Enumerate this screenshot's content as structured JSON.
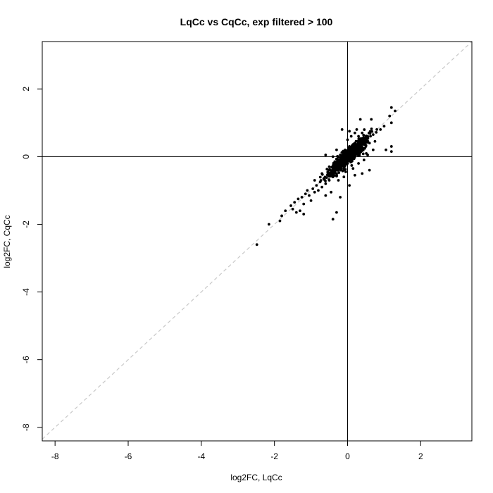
{
  "chart_data": {
    "type": "scatter",
    "title": "LqCc vs CqCc, exp filtered > 100",
    "xlabel": "log2FC, LqCc",
    "ylabel": "log2FC, CqCc",
    "xlim": [
      -8.35,
      3.4
    ],
    "ylim": [
      -8.4,
      3.4
    ],
    "xticks": [
      -8,
      -6,
      -4,
      -2,
      0,
      2
    ],
    "yticks": [
      -8,
      -6,
      -4,
      -2,
      0,
      2
    ],
    "xtick_labels": [
      "-8",
      "-6",
      "-4",
      "-2",
      "0",
      "2"
    ],
    "ytick_labels": [
      "-8",
      "-6",
      "-4",
      "-2",
      "0",
      "2"
    ],
    "reference_lines": {
      "vertical_x": 0,
      "horizontal_y": 0,
      "diagonal": "y = x, dashed grey"
    },
    "colors": {
      "points": "#000000",
      "diagonal": "#c8c8c8",
      "axes": "#000000"
    },
    "grid": false,
    "legend": "none",
    "points": [
      [
        -2.48,
        -2.6
      ],
      [
        -2.15,
        -2.0
      ],
      [
        -1.85,
        -1.9
      ],
      [
        -1.8,
        -1.75
      ],
      [
        -1.7,
        -1.6
      ],
      [
        -1.55,
        -1.45
      ],
      [
        -1.5,
        -1.55
      ],
      [
        -1.4,
        -1.65
      ],
      [
        -1.3,
        -1.6
      ],
      [
        -1.2,
        -1.7
      ],
      [
        -1.45,
        -1.35
      ],
      [
        -1.35,
        -1.25
      ],
      [
        -1.25,
        -1.2
      ],
      [
        -1.15,
        -1.1
      ],
      [
        -1.2,
        -1.4
      ],
      [
        -1.05,
        -1.15
      ],
      [
        -1.1,
        -1.0
      ],
      [
        -1.0,
        -1.3
      ],
      [
        -0.95,
        -0.95
      ],
      [
        -0.9,
        -1.05
      ],
      [
        -0.85,
        -0.85
      ],
      [
        -0.8,
        -1.0
      ],
      [
        -0.75,
        -0.75
      ],
      [
        -0.7,
        -0.9
      ],
      [
        -0.65,
        -0.65
      ],
      [
        -0.6,
        -0.8
      ],
      [
        -0.55,
        -0.55
      ],
      [
        -0.5,
        -0.7
      ],
      [
        -0.45,
        -0.45
      ],
      [
        -0.4,
        -0.6
      ],
      [
        -0.35,
        -0.35
      ],
      [
        -0.3,
        -0.5
      ],
      [
        -0.25,
        -0.25
      ],
      [
        -0.2,
        -0.4
      ],
      [
        -0.15,
        -0.15
      ],
      [
        -0.1,
        -0.3
      ],
      [
        -0.05,
        -0.05
      ],
      [
        0.0,
        -0.2
      ],
      [
        0.05,
        0.05
      ],
      [
        0.1,
        -0.1
      ],
      [
        0.15,
        0.15
      ],
      [
        0.2,
        0.0
      ],
      [
        0.25,
        0.25
      ],
      [
        0.3,
        0.1
      ],
      [
        0.35,
        0.35
      ],
      [
        0.4,
        0.2
      ],
      [
        0.45,
        0.45
      ],
      [
        0.5,
        0.3
      ],
      [
        0.55,
        0.55
      ],
      [
        0.6,
        0.4
      ],
      [
        -0.4,
        -1.85
      ],
      [
        -0.3,
        -1.65
      ],
      [
        -0.2,
        -1.2
      ],
      [
        -0.45,
        -1.05
      ],
      [
        -0.6,
        -1.15
      ],
      [
        -0.9,
        -0.7
      ],
      [
        -0.7,
        -0.5
      ],
      [
        -0.5,
        -0.3
      ],
      [
        -0.35,
        -0.15
      ],
      [
        -0.2,
        0.05
      ],
      [
        -0.15,
        0.8
      ],
      [
        -0.3,
        0.2
      ],
      [
        -0.6,
        0.05
      ],
      [
        -0.4,
        0.0
      ],
      [
        0.0,
        0.5
      ],
      [
        0.05,
        0.3
      ],
      [
        0.1,
        0.6
      ],
      [
        0.2,
        0.7
      ],
      [
        0.3,
        0.6
      ],
      [
        0.25,
        0.8
      ],
      [
        0.05,
        0.75
      ],
      [
        0.4,
        0.7
      ],
      [
        0.5,
        0.6
      ],
      [
        0.6,
        0.7
      ],
      [
        0.7,
        0.65
      ],
      [
        0.8,
        0.8
      ],
      [
        0.9,
        0.8
      ],
      [
        1.0,
        0.9
      ],
      [
        0.35,
        1.1
      ],
      [
        0.65,
        1.1
      ],
      [
        1.2,
        1.45
      ],
      [
        1.3,
        1.35
      ],
      [
        1.15,
        1.2
      ],
      [
        1.2,
        1.0
      ],
      [
        1.2,
        0.3
      ],
      [
        1.2,
        0.15
      ],
      [
        1.05,
        0.2
      ],
      [
        0.6,
        -0.4
      ],
      [
        0.4,
        -0.5
      ],
      [
        0.2,
        -0.55
      ],
      [
        0.05,
        -0.85
      ],
      [
        -0.1,
        -0.6
      ],
      [
        0.3,
        -0.2
      ],
      [
        0.45,
        -0.1
      ],
      [
        0.7,
        0.2
      ],
      [
        0.75,
        0.45
      ],
      [
        0.55,
        0.05
      ],
      [
        0.15,
        -0.35
      ],
      [
        -0.05,
        -0.45
      ],
      [
        -0.25,
        -0.7
      ]
    ]
  }
}
